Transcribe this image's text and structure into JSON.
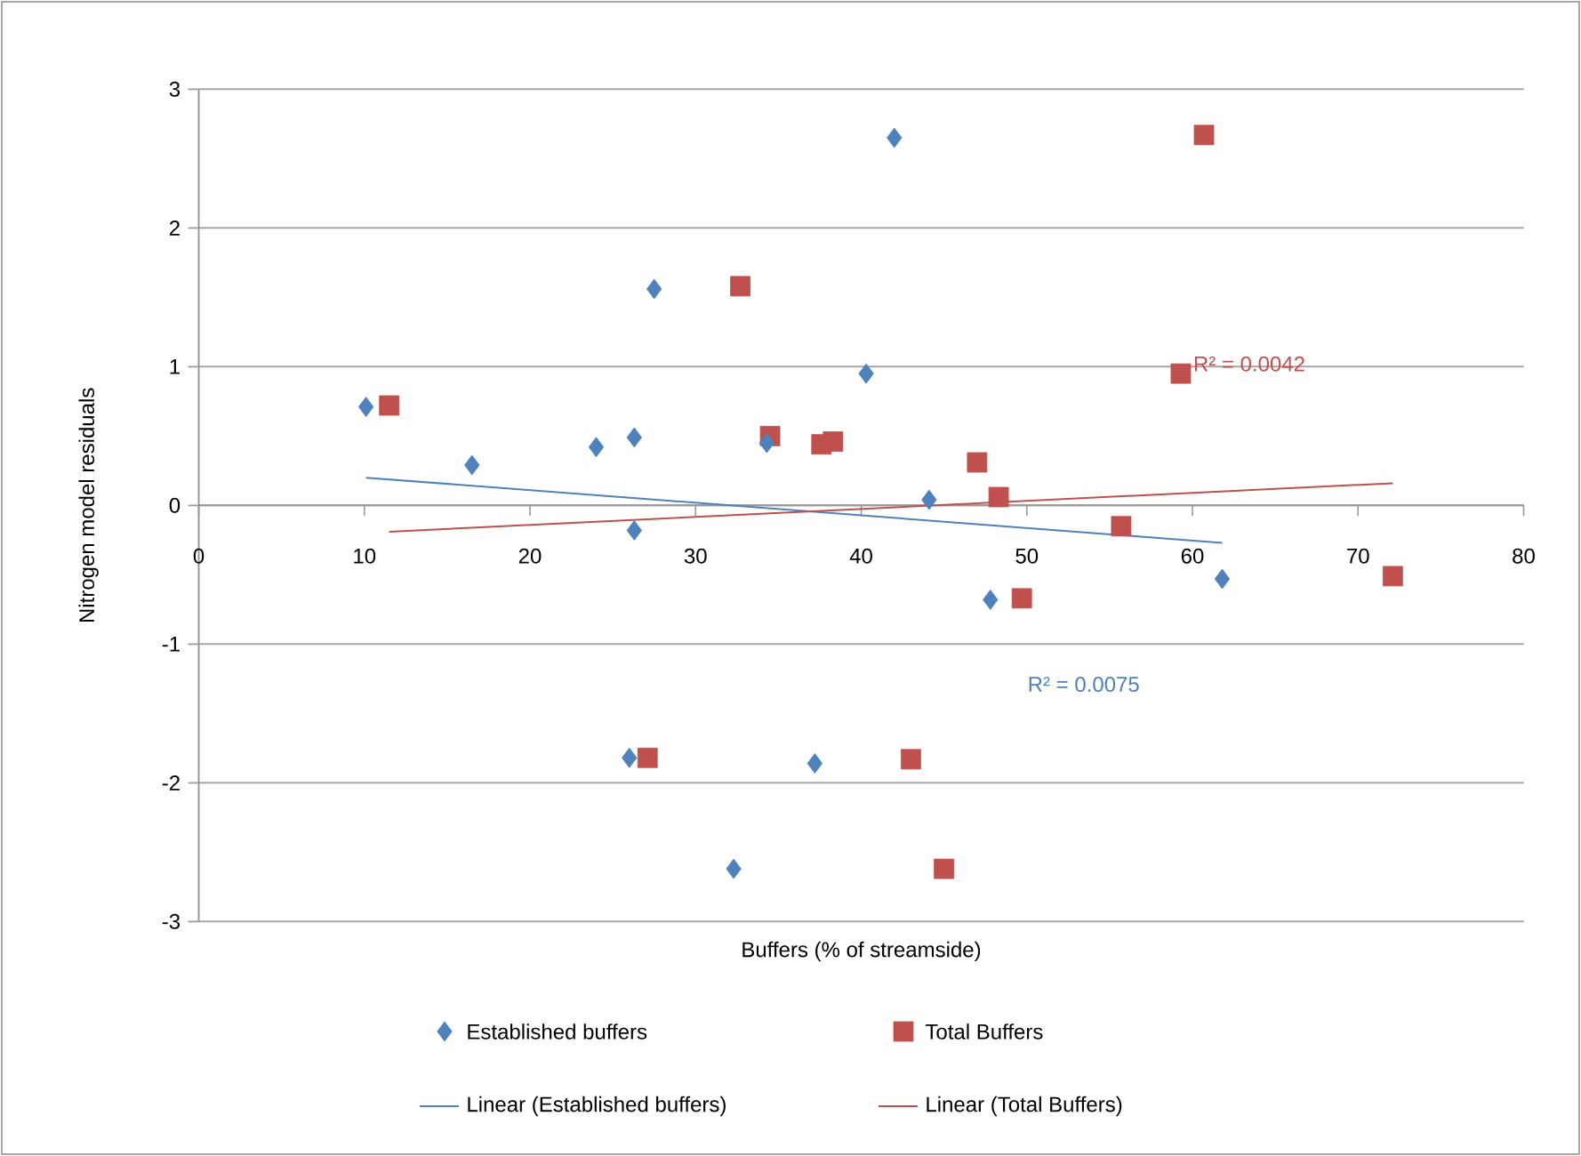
{
  "chart_data": {
    "type": "scatter",
    "xlabel": "Buffers (% of streamside)",
    "ylabel": "Nitrogen model residuals",
    "xlim": [
      0,
      80
    ],
    "ylim": [
      -3,
      3
    ],
    "xticks": [
      0,
      10,
      20,
      30,
      40,
      50,
      60,
      70,
      80
    ],
    "yticks": [
      -3,
      -2,
      -1,
      0,
      1,
      2,
      3
    ],
    "grid": "y",
    "legend": "bottom",
    "series": [
      {
        "name": "Established buffers",
        "marker": "diamond",
        "color": "#4f81bd",
        "x": [
          10.1,
          16.5,
          24.0,
          26.3,
          26.3,
          27.5,
          34.3,
          40.3,
          42.0,
          44.1,
          47.8,
          61.8,
          26.0,
          37.2,
          32.3
        ],
        "values": [
          0.71,
          0.29,
          0.42,
          0.49,
          -0.18,
          1.56,
          0.45,
          0.95,
          2.65,
          0.04,
          -0.68,
          -0.53,
          -1.82,
          -1.86,
          -2.62
        ]
      },
      {
        "name": "Total Buffers",
        "marker": "square",
        "color": "#c0504d",
        "x": [
          11.5,
          32.7,
          34.5,
          37.6,
          38.3,
          47.0,
          48.3,
          49.7,
          55.7,
          59.3,
          60.7,
          72.1,
          27.1,
          43.0,
          45.0
        ],
        "values": [
          0.72,
          1.58,
          0.5,
          0.44,
          0.46,
          0.31,
          0.06,
          -0.67,
          -0.15,
          0.95,
          2.67,
          -0.51,
          -1.82,
          -1.83,
          -2.62
        ]
      },
      {
        "name": "Linear (Established buffers)",
        "type": "line",
        "marker": "none",
        "color": "#4f81bd",
        "x": [
          10.1,
          61.8
        ],
        "values": [
          0.2,
          -0.27
        ]
      },
      {
        "name": "Linear (Total Buffers)",
        "type": "line",
        "marker": "none",
        "color": "#c0504d",
        "x": [
          11.5,
          72.1
        ],
        "values": [
          -0.19,
          0.16
        ]
      }
    ],
    "annotations": [
      "R² = 0.0042",
      "R² = 0.0075"
    ]
  }
}
